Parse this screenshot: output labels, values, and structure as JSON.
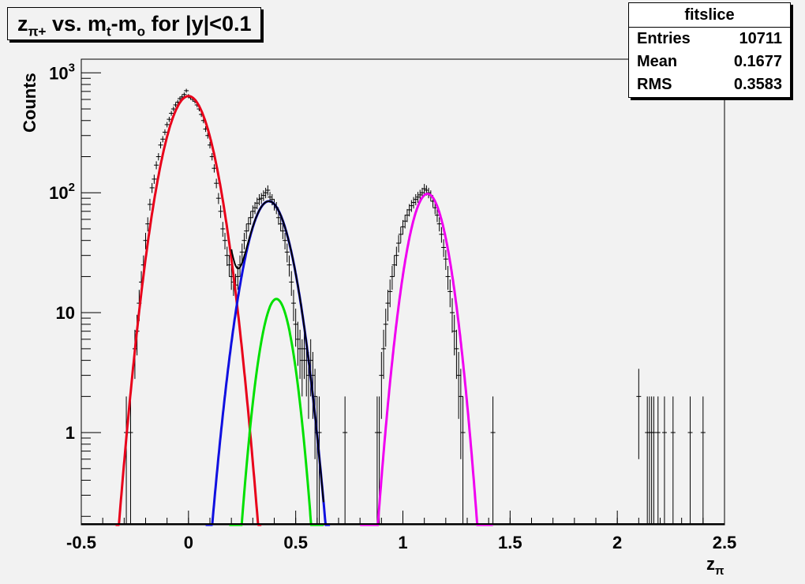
{
  "title": {
    "main": "z",
    "sub": "π+",
    "rest": " vs. m",
    "sub2": "t",
    "rest2": "-m",
    "sub3": "o",
    "rest3": " for |y|<0.1"
  },
  "stats": {
    "name": "fitslice",
    "rows": [
      {
        "label": "Entries",
        "value": "10711"
      },
      {
        "label": "Mean",
        "value": "0.1677"
      },
      {
        "label": "RMS",
        "value": "0.3583"
      }
    ]
  },
  "chart_data": {
    "type": "scatter",
    "xlabel": "zπ",
    "ylabel": "Counts",
    "xlim": [
      -0.5,
      2.5
    ],
    "ylim": [
      0.17,
      1300
    ],
    "yscale": "log",
    "x_ticks": [
      "-0.5",
      "0",
      "0.5",
      "1",
      "1.5",
      "2",
      "2.5"
    ],
    "y_ticks": [
      "1",
      "10",
      "10^2",
      "10^3"
    ],
    "grid": false,
    "colors": {
      "red": "#e8001a",
      "blue": "#1010e0",
      "green": "#00e000",
      "magenta": "#f000f0",
      "black": "#000000",
      "frame_bg": "#f2f2f2"
    },
    "data_points": [
      [
        -0.29,
        1,
        1
      ],
      [
        -0.27,
        1,
        1
      ],
      [
        -0.25,
        5,
        2.2
      ],
      [
        -0.24,
        7,
        2.6
      ],
      [
        -0.23,
        12,
        3.5
      ],
      [
        -0.22,
        18,
        4.2
      ],
      [
        -0.21,
        25,
        5
      ],
      [
        -0.2,
        40,
        6.3
      ],
      [
        -0.19,
        55,
        7.4
      ],
      [
        -0.18,
        80,
        9
      ],
      [
        -0.17,
        110,
        10.5
      ],
      [
        -0.16,
        130,
        11.4
      ],
      [
        -0.15,
        170,
        13
      ],
      [
        -0.14,
        200,
        14
      ],
      [
        -0.13,
        250,
        15.8
      ],
      [
        -0.12,
        280,
        16.7
      ],
      [
        -0.11,
        320,
        17.9
      ],
      [
        -0.1,
        370,
        19.2
      ],
      [
        -0.09,
        410,
        20.2
      ],
      [
        -0.08,
        460,
        21.4
      ],
      [
        -0.07,
        500,
        22.4
      ],
      [
        -0.06,
        540,
        23.2
      ],
      [
        -0.05,
        570,
        23.9
      ],
      [
        -0.04,
        610,
        24.7
      ],
      [
        -0.03,
        630,
        25.1
      ],
      [
        -0.02,
        660,
        25.7
      ],
      [
        -0.01,
        710,
        26.6
      ],
      [
        0.0,
        640,
        25.3
      ],
      [
        0.01,
        620,
        24.9
      ],
      [
        0.02,
        600,
        24.5
      ],
      [
        0.03,
        580,
        24.1
      ],
      [
        0.04,
        540,
        23.2
      ],
      [
        0.05,
        500,
        22.4
      ],
      [
        0.06,
        450,
        21.2
      ],
      [
        0.07,
        400,
        20
      ],
      [
        0.08,
        340,
        18.4
      ],
      [
        0.09,
        300,
        17.3
      ],
      [
        0.1,
        250,
        15.8
      ],
      [
        0.11,
        200,
        14.1
      ],
      [
        0.12,
        160,
        12.6
      ],
      [
        0.13,
        120,
        11
      ],
      [
        0.14,
        90,
        9.5
      ],
      [
        0.15,
        70,
        8.4
      ],
      [
        0.16,
        50,
        7.1
      ],
      [
        0.17,
        40,
        6.3
      ],
      [
        0.18,
        30,
        5.5
      ],
      [
        0.19,
        25,
        5
      ],
      [
        0.2,
        20,
        4.5
      ],
      [
        0.21,
        18,
        4.2
      ],
      [
        0.22,
        17,
        4.1
      ],
      [
        0.23,
        20,
        4.5
      ],
      [
        0.24,
        25,
        5
      ],
      [
        0.25,
        32,
        5.7
      ],
      [
        0.26,
        40,
        6.3
      ],
      [
        0.27,
        48,
        6.9
      ],
      [
        0.28,
        55,
        7.4
      ],
      [
        0.29,
        62,
        7.9
      ],
      [
        0.3,
        70,
        8.4
      ],
      [
        0.31,
        75,
        8.7
      ],
      [
        0.32,
        82,
        9.1
      ],
      [
        0.33,
        88,
        9.4
      ],
      [
        0.34,
        90,
        9.5
      ],
      [
        0.35,
        95,
        9.7
      ],
      [
        0.36,
        100,
        10
      ],
      [
        0.37,
        105,
        10.2
      ],
      [
        0.38,
        92,
        9.6
      ],
      [
        0.39,
        88,
        9.4
      ],
      [
        0.4,
        80,
        8.9
      ],
      [
        0.41,
        75,
        8.7
      ],
      [
        0.42,
        62,
        7.9
      ],
      [
        0.43,
        55,
        7.4
      ],
      [
        0.44,
        48,
        6.9
      ],
      [
        0.45,
        40,
        6.3
      ],
      [
        0.46,
        32,
        5.7
      ],
      [
        0.47,
        25,
        5
      ],
      [
        0.48,
        18,
        4.2
      ],
      [
        0.49,
        12,
        3.5
      ],
      [
        0.5,
        8,
        2.8
      ],
      [
        0.51,
        6,
        2.4
      ],
      [
        0.52,
        5,
        2.2
      ],
      [
        0.53,
        4,
        2
      ],
      [
        0.54,
        5,
        2.2
      ],
      [
        0.55,
        4,
        2
      ],
      [
        0.56,
        3,
        1.7
      ],
      [
        0.57,
        4,
        2
      ],
      [
        0.58,
        3,
        1.7
      ],
      [
        0.59,
        2,
        1.4
      ],
      [
        0.6,
        1,
        1
      ],
      [
        0.61,
        1,
        1
      ],
      [
        0.73,
        1,
        1
      ],
      [
        0.88,
        1,
        1
      ],
      [
        0.89,
        1,
        1
      ],
      [
        0.9,
        3,
        1.7
      ],
      [
        0.91,
        5,
        2.2
      ],
      [
        0.92,
        8,
        2.8
      ],
      [
        0.93,
        12,
        3.5
      ],
      [
        0.94,
        15,
        3.9
      ],
      [
        0.95,
        20,
        4.5
      ],
      [
        0.96,
        25,
        5
      ],
      [
        0.97,
        30,
        5.5
      ],
      [
        0.98,
        38,
        6.2
      ],
      [
        0.99,
        45,
        6.7
      ],
      [
        1.0,
        52,
        7.2
      ],
      [
        1.01,
        58,
        7.6
      ],
      [
        1.02,
        65,
        8.1
      ],
      [
        1.03,
        72,
        8.5
      ],
      [
        1.04,
        78,
        8.8
      ],
      [
        1.05,
        83,
        9.1
      ],
      [
        1.06,
        88,
        9.4
      ],
      [
        1.07,
        92,
        9.6
      ],
      [
        1.08,
        96,
        9.8
      ],
      [
        1.09,
        100,
        10
      ],
      [
        1.1,
        108,
        10.4
      ],
      [
        1.11,
        105,
        10.2
      ],
      [
        1.12,
        100,
        10
      ],
      [
        1.13,
        95,
        9.7
      ],
      [
        1.14,
        85,
        9.2
      ],
      [
        1.15,
        75,
        8.7
      ],
      [
        1.16,
        65,
        8.1
      ],
      [
        1.17,
        55,
        7.4
      ],
      [
        1.18,
        45,
        6.7
      ],
      [
        1.19,
        35,
        5.9
      ],
      [
        1.2,
        28,
        5.3
      ],
      [
        1.21,
        20,
        4.5
      ],
      [
        1.22,
        15,
        3.9
      ],
      [
        1.23,
        10,
        3.2
      ],
      [
        1.24,
        7,
        2.6
      ],
      [
        1.25,
        5,
        2.2
      ],
      [
        1.26,
        3,
        1.7
      ],
      [
        1.27,
        2,
        1.4
      ],
      [
        1.28,
        1,
        1
      ],
      [
        1.42,
        1,
        1
      ],
      [
        2.1,
        2,
        1.4
      ],
      [
        2.14,
        1,
        1
      ],
      [
        2.15,
        1,
        1
      ],
      [
        2.16,
        1,
        1
      ],
      [
        2.17,
        1,
        1
      ],
      [
        2.19,
        1,
        1
      ],
      [
        2.22,
        1,
        1
      ],
      [
        2.26,
        1,
        1
      ],
      [
        2.34,
        1,
        1
      ],
      [
        2.4,
        1,
        1
      ]
    ],
    "fits": [
      {
        "color": "red",
        "amp": 640,
        "mean": 0.0,
        "sigma": 0.08,
        "xmin": -0.34,
        "xmax": 0.34
      },
      {
        "color": "blue",
        "amp": 85,
        "mean": 0.375,
        "sigma": 0.075,
        "xmin": 0.08,
        "xmax": 0.66
      },
      {
        "color": "green",
        "amp": 13,
        "mean": 0.41,
        "sigma": 0.055,
        "xmin": 0.19,
        "xmax": 0.63
      },
      {
        "color": "magenta",
        "amp": 98,
        "mean": 1.115,
        "sigma": 0.065,
        "xmin": 0.8,
        "xmax": 1.42
      }
    ],
    "total_fit": {
      "color": "black",
      "xmin": 0.2,
      "xmax": 0.63
    }
  }
}
